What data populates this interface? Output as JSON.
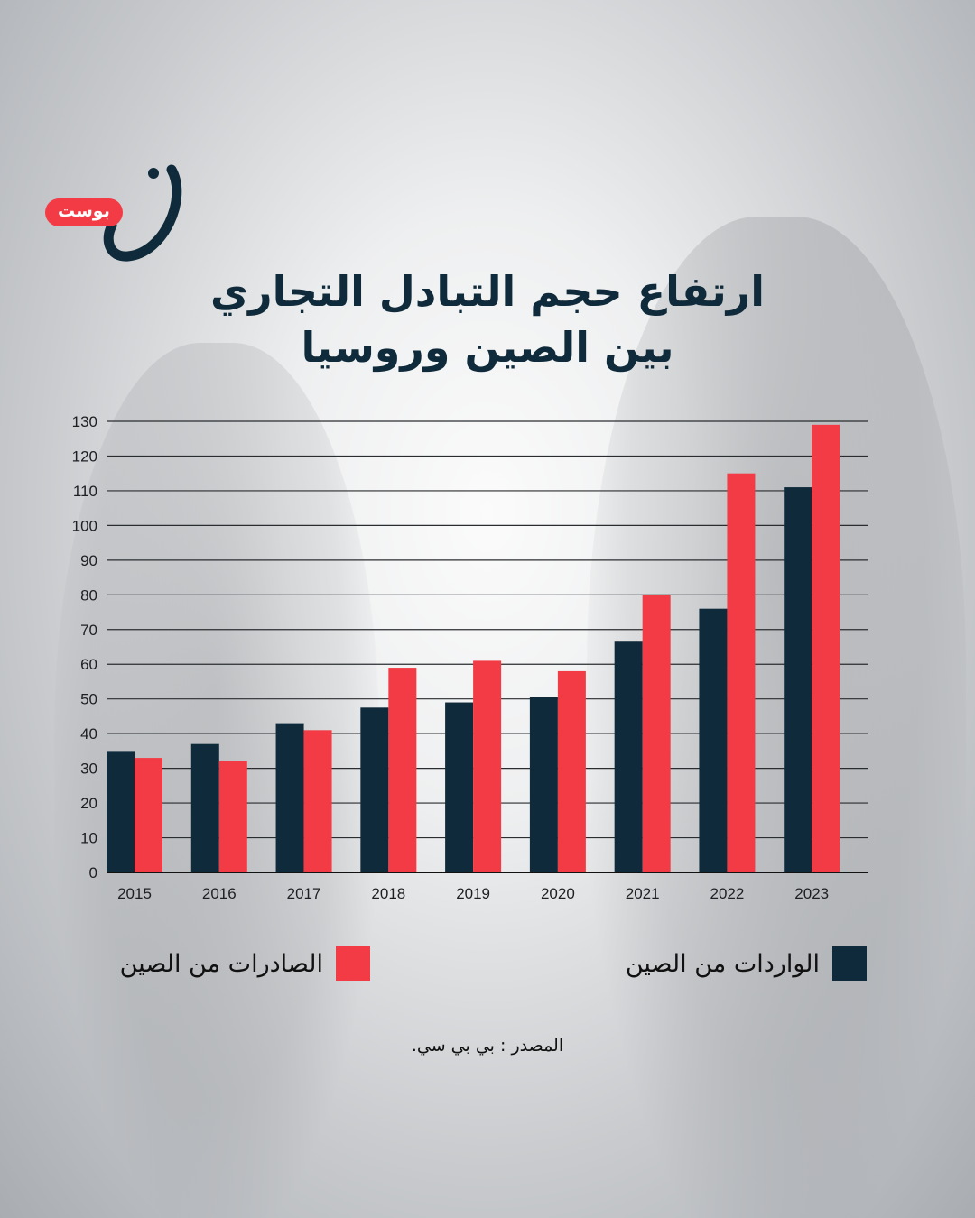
{
  "brand": {
    "badge_text": "بوست",
    "mark_glyph": "ن",
    "badge_color": "#f23b45",
    "mark_color": "#0f2a3a"
  },
  "title_lines": [
    "ارتفاع حجم التبادل التجاري",
    "بين الصين وروسيا"
  ],
  "legend": [
    {
      "label": "الواردات من الصين",
      "color": "#0f2a3a"
    },
    {
      "label": "الصادرات من الصين",
      "color": "#f23b45"
    }
  ],
  "source": "المصدر : بي بي سي.",
  "chart_data": {
    "type": "bar",
    "categories": [
      "2015",
      "2016",
      "2017",
      "2018",
      "2019",
      "2020",
      "2021",
      "2022",
      "2023"
    ],
    "series": [
      {
        "name": "الواردات من الصين",
        "color": "#0f2a3a",
        "values": [
          35,
          37,
          43,
          47.5,
          49,
          50.5,
          66.5,
          76,
          111
        ]
      },
      {
        "name": "الصادرات من الصين",
        "color": "#f23b45",
        "values": [
          33,
          32,
          41,
          59,
          61,
          58,
          80,
          115,
          129
        ]
      }
    ],
    "ylim": [
      0,
      130
    ],
    "yticks": [
      0,
      10,
      20,
      30,
      40,
      50,
      60,
      70,
      80,
      90,
      100,
      110,
      120,
      130
    ],
    "grid": true,
    "legend_position": "bottom"
  }
}
